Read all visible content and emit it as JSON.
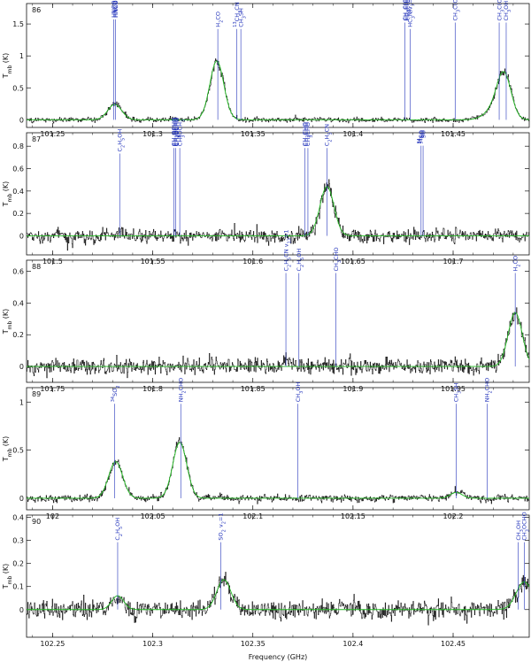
{
  "chart_data": [
    {
      "type": "line",
      "panel_label": "86",
      "ylabel": "T_mb (K)",
      "xlim": [
        101.237,
        101.488
      ],
      "ylim": [
        -0.12,
        1.82
      ],
      "xticks": [
        101.25,
        101.3,
        101.35,
        101.4,
        101.45
      ],
      "yticks": [
        0,
        0.5,
        1,
        1.5
      ],
      "ytick_labels": [
        "0",
        "0.5",
        "1",
        "1.5"
      ],
      "peaks": [
        {
          "x": 101.281,
          "amp": 0.24,
          "width": 0.0035
        },
        {
          "x": 101.332,
          "amp": 0.92,
          "width": 0.0035
        },
        {
          "x": 101.4755,
          "amp": 0.62,
          "width": 0.0035
        },
        {
          "x": 101.4715,
          "amp": 0.18,
          "width": 0.005
        }
      ],
      "noise": 0.03,
      "transitions": [
        {
          "x": 101.2805,
          "top": 1.6,
          "label": "HNCO",
          "stack": 3
        },
        {
          "x": 101.2815,
          "top": 1.6,
          "label": "HNCO"
        },
        {
          "x": 101.3325,
          "top": 1.45,
          "label": "H2CO"
        },
        {
          "x": 101.342,
          "top": 1.45,
          "label": "13CH3CN"
        },
        {
          "x": 101.344,
          "top": 1.45,
          "label": "CH3SH"
        },
        {
          "x": 101.426,
          "top": 1.55,
          "label": "CH3C(O)CH3",
          "stack": 3
        },
        {
          "x": 101.4285,
          "top": 1.45,
          "label": "HC3N v7=1"
        },
        {
          "x": 101.451,
          "top": 1.55,
          "label": "CH3C(O)CH3"
        },
        {
          "x": 101.473,
          "top": 1.55,
          "label": "CH3C(O)CH3"
        },
        {
          "x": 101.4765,
          "top": 1.55,
          "label": "CH3OH"
        }
      ]
    },
    {
      "type": "line",
      "panel_label": "87",
      "ylabel": "T_mb (K)",
      "xlim": [
        101.487,
        101.738
      ],
      "ylim": [
        -0.17,
        0.92
      ],
      "xticks": [
        101.5,
        101.55,
        101.6,
        101.65,
        101.7
      ],
      "yticks": [
        0,
        0.2,
        0.4,
        0.6,
        0.8
      ],
      "ytick_labels": [
        "0",
        "0.2",
        "0.4",
        "0.6",
        "0.8"
      ],
      "peaks": [
        {
          "x": 101.637,
          "amp": 0.44,
          "width": 0.0035
        }
      ],
      "noise": 0.05,
      "transitions": [
        {
          "x": 101.5335,
          "top": 0.75,
          "label": "C2H5OH"
        },
        {
          "x": 101.5605,
          "top": 0.8,
          "label": "CH3OCHO",
          "stack": 4
        },
        {
          "x": 101.5615,
          "top": 0.8,
          "label": "CH3OCHO"
        },
        {
          "x": 101.5635,
          "top": 0.8,
          "label": "CH3OCH3"
        },
        {
          "x": 101.626,
          "top": 0.8,
          "label": "CH3CHO",
          "stack": 2
        },
        {
          "x": 101.6275,
          "top": 0.8,
          "label": "CH3CHO"
        },
        {
          "x": 101.637,
          "top": 0.8,
          "label": "C2H5CN"
        },
        {
          "x": 101.684,
          "top": 0.82,
          "label": "34SO",
          "stack": 2
        },
        {
          "x": 101.685,
          "top": 0.82,
          "label": "34SO"
        }
      ]
    },
    {
      "type": "line",
      "panel_label": "88",
      "ylabel": "T_mb (K)",
      "xlim": [
        101.737,
        101.988
      ],
      "ylim": [
        -0.1,
        0.67
      ],
      "xticks": [
        101.75,
        101.8,
        101.85,
        101.9,
        101.95
      ],
      "yticks": [
        0,
        0.2,
        0.4,
        0.6
      ],
      "ytick_labels": [
        "0",
        "0.2",
        "0.4",
        "0.6"
      ],
      "peaks": [
        {
          "x": 101.981,
          "amp": 0.34,
          "width": 0.0035
        }
      ],
      "noise": 0.04,
      "transitions": [
        {
          "x": 101.8665,
          "top": 0.6,
          "label": "C2H5CN v13=1"
        },
        {
          "x": 101.873,
          "top": 0.6,
          "label": "C2H5OH"
        },
        {
          "x": 101.8915,
          "top": 0.6,
          "label": "CH3CHO"
        },
        {
          "x": 101.981,
          "top": 0.6,
          "label": "H2CO"
        }
      ]
    },
    {
      "type": "line",
      "panel_label": "89",
      "ylabel": "T_mb (K)",
      "xlim": [
        101.987,
        102.238
      ],
      "ylim": [
        -0.12,
        1.15
      ],
      "xticks": [
        102.0,
        102.05,
        102.1,
        102.15,
        102.2
      ],
      "xtick_labels": [
        "102",
        "102.05",
        "102.1",
        "102.15",
        "102.2"
      ],
      "yticks": [
        0,
        0.5,
        1
      ],
      "ytick_labels": [
        "0",
        "0.5",
        "1"
      ],
      "peaks": [
        {
          "x": 102.0315,
          "amp": 0.38,
          "width": 0.0035
        },
        {
          "x": 102.0635,
          "amp": 0.58,
          "width": 0.0035
        },
        {
          "x": 102.2015,
          "amp": 0.06,
          "width": 0.003
        }
      ],
      "noise": 0.03,
      "transitions": [
        {
          "x": 102.031,
          "top": 1.0,
          "label": "34SO2"
        },
        {
          "x": 102.064,
          "top": 1.0,
          "label": "NH2CHO"
        },
        {
          "x": 102.1225,
          "top": 1.0,
          "label": "CH3OH"
        },
        {
          "x": 102.2015,
          "top": 1.0,
          "label": "CH3SH"
        },
        {
          "x": 102.217,
          "top": 1.0,
          "label": "NH2CHO"
        }
      ]
    },
    {
      "type": "line",
      "panel_label": "90",
      "ylabel": "T_mb (K)",
      "xlim": [
        102.237,
        102.488
      ],
      "ylim": [
        -0.12,
        0.41
      ],
      "xticks": [
        102.25,
        102.3,
        102.35,
        102.4,
        102.45
      ],
      "yticks": [
        0,
        0.1,
        0.2,
        0.3,
        0.4
      ],
      "ytick_labels": [
        "0",
        "0.1",
        "0.2",
        "0.3",
        "0.4"
      ],
      "peaks": [
        {
          "x": 102.2825,
          "amp": 0.06,
          "width": 0.003
        },
        {
          "x": 102.3355,
          "amp": 0.13,
          "width": 0.0035
        },
        {
          "x": 102.4855,
          "amp": 0.12,
          "width": 0.004
        }
      ],
      "noise": 0.03,
      "transitions": [
        {
          "x": 102.2825,
          "top": 0.3,
          "label": "C2H5OH"
        },
        {
          "x": 102.334,
          "top": 0.3,
          "label": "SO2 v2=1"
        },
        {
          "x": 102.4825,
          "top": 0.3,
          "label": "CH3OH"
        },
        {
          "x": 102.4855,
          "top": 0.3,
          "label": "CH3OCHO"
        }
      ]
    }
  ],
  "xlabel": "Frequency (GHz)",
  "colors": {
    "observed": "#111111",
    "model": "#22bb22",
    "transition": "#2233bb"
  }
}
